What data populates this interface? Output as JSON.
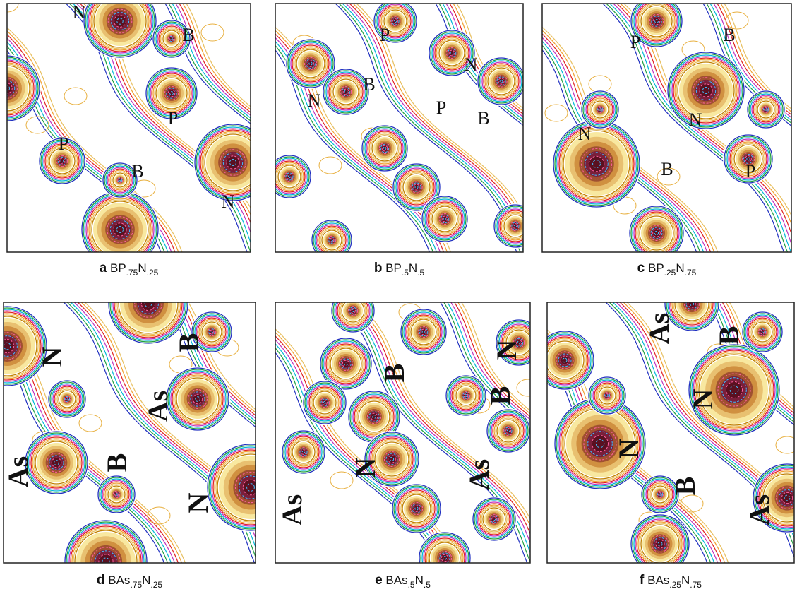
{
  "panels": [
    {
      "letter": "a",
      "formula": [
        "BP",
        ".75",
        "N",
        ".25"
      ],
      "atoms": [
        "N",
        "B",
        "P",
        "P",
        "B",
        "N"
      ]
    },
    {
      "letter": "b",
      "formula": [
        "BP",
        ".5",
        "N",
        ".5"
      ],
      "atoms": [
        "P",
        "N",
        "B",
        "N",
        "P",
        "B"
      ]
    },
    {
      "letter": "c",
      "formula": [
        "BP",
        ".25",
        "N",
        ".75"
      ],
      "atoms": [
        "P",
        "B",
        "N",
        "N",
        "B",
        "P"
      ]
    },
    {
      "letter": "d",
      "formula": [
        "BAs",
        ".75",
        "N",
        ".25"
      ],
      "atoms": [
        "N",
        "B",
        "As",
        "As",
        "B",
        "N"
      ]
    },
    {
      "letter": "e",
      "formula": [
        "BAs",
        ".5",
        "N",
        ".5"
      ],
      "atoms": [
        "N",
        "B",
        "B",
        "N",
        "As",
        "As"
      ]
    },
    {
      "letter": "f",
      "formula": [
        "BAs",
        ".25",
        "N",
        ".75"
      ],
      "atoms": [
        "As",
        "B",
        "N",
        "N",
        "B",
        "As"
      ]
    }
  ]
}
